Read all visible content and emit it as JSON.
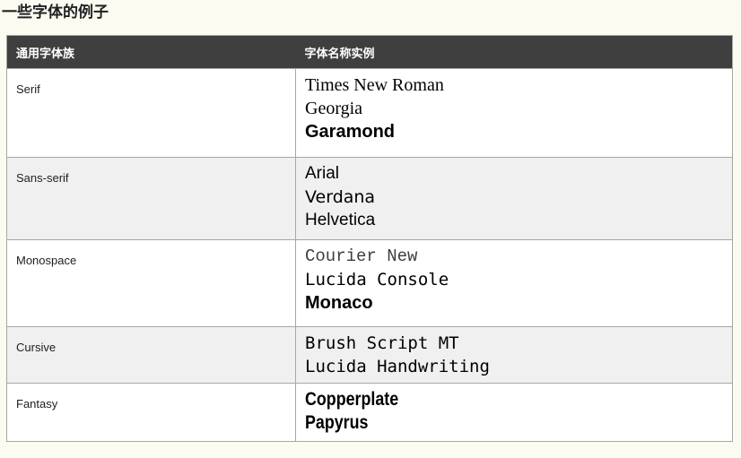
{
  "page": {
    "title": "一些字体的例子"
  },
  "colors": {
    "page_bg": "#fbfbf2",
    "header_bg": "#3f3f3f",
    "header_fg": "#ffffff",
    "border": "#a6a6a6",
    "alt_row_bg": "#f0f0f0"
  },
  "table": {
    "headers": [
      "通用字体族",
      "字体名称实例"
    ],
    "rows": [
      {
        "family": "Serif",
        "examples": [
          "Times New Roman",
          "Georgia",
          "Garamond"
        ]
      },
      {
        "family": "Sans-serif",
        "examples": [
          "Arial",
          "Verdana",
          "Helvetica"
        ]
      },
      {
        "family": "Monospace",
        "examples": [
          "Courier New",
          "Lucida Console",
          "Monaco"
        ]
      },
      {
        "family": "Cursive",
        "examples": [
          "Brush Script MT",
          "Lucida Handwriting"
        ]
      },
      {
        "family": "Fantasy",
        "examples": [
          "Copperplate",
          "Papyrus"
        ]
      }
    ]
  }
}
